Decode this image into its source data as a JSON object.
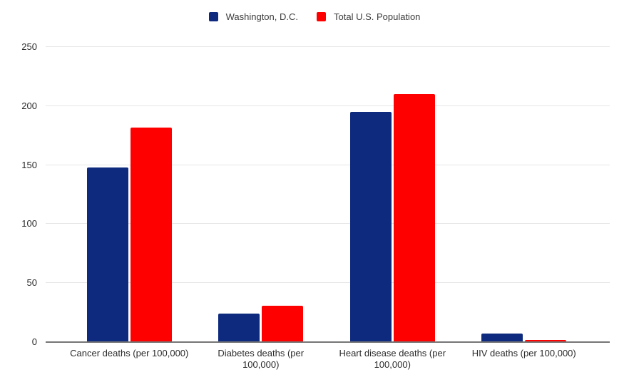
{
  "legend": {
    "items": [
      {
        "label": "Washington, D.C.",
        "color": "#0e2a7e"
      },
      {
        "label": "Total U.S. Population",
        "color": "#fe0000"
      }
    ]
  },
  "chart_data": {
    "type": "bar",
    "title": "",
    "categories": [
      "Cancer deaths (per 100,000)",
      "Diabetes deaths (per 100,000)",
      "Heart disease deaths (per 100,000)",
      "HIV deaths (per 100,000)"
    ],
    "series": [
      {
        "name": "Washington, D.C.",
        "color": "#0e2a7e",
        "values": [
          148,
          24,
          195,
          7
        ]
      },
      {
        "name": "Total U.S. Population",
        "color": "#fe0000",
        "values": [
          182,
          31,
          210,
          2
        ]
      }
    ],
    "xlabel": "",
    "ylabel": "",
    "ylim": [
      0,
      250
    ],
    "yticks": [
      0,
      50,
      100,
      150,
      200,
      250
    ],
    "grid": true,
    "legend_position": "top"
  },
  "colors": {
    "background": "#ffffff",
    "gridline": "#e6e6e6",
    "axis_line": "#757575",
    "text": "#2b2b2b"
  }
}
